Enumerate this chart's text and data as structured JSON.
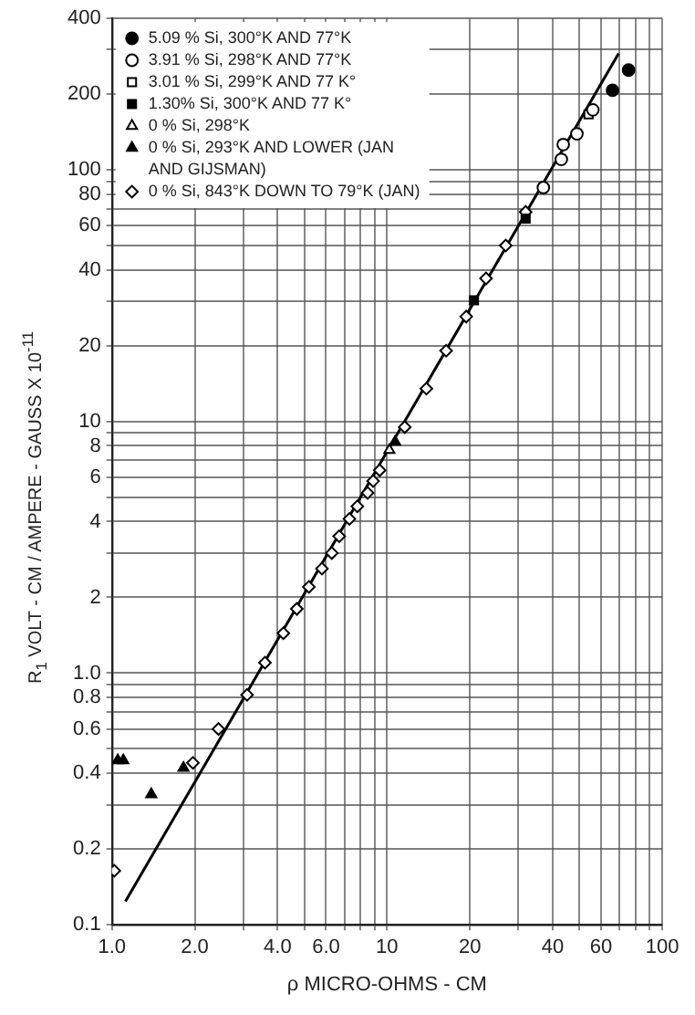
{
  "chart_data": {
    "type": "scatter",
    "xlabel": "ρ MICRO-OHMS - CM",
    "ylabel": "R$_{1}$ VOLT - CM / AMPERE - GAUSS X 10$^{-11}$",
    "log": "xy",
    "grid": true,
    "legend": "top left",
    "xlim": [
      1,
      100
    ],
    "ylim": [
      0.1,
      400
    ],
    "xticks": [
      {
        "value": 1,
        "label": "1.0"
      },
      {
        "value": 2,
        "label": "2.0"
      },
      {
        "value": 3,
        "label": null
      },
      {
        "value": 4,
        "label": "4.0"
      },
      {
        "value": 5,
        "label": null
      },
      {
        "value": 6,
        "label": "6.0"
      },
      {
        "value": 7,
        "label": null
      },
      {
        "value": 8,
        "label": null
      },
      {
        "value": 9,
        "label": null
      },
      10,
      20,
      {
        "value": 30,
        "label": null
      },
      40,
      {
        "value": 50,
        "label": null
      },
      60,
      {
        "value": 70,
        "label": null
      },
      {
        "value": 80,
        "label": null
      },
      {
        "value": 90,
        "label": null
      },
      100
    ],
    "yticks": [
      0.1,
      0.2,
      {
        "value": 0.3,
        "label": null
      },
      0.4,
      {
        "value": 0.5,
        "label": null
      },
      0.6,
      {
        "value": 0.7,
        "label": null
      },
      0.8,
      {
        "value": 0.9,
        "label": null
      },
      {
        "value": 1,
        "label": "1.0"
      },
      2,
      {
        "value": 3,
        "label": null
      },
      4,
      {
        "value": 5,
        "label": null
      },
      6,
      {
        "value": 7,
        "label": null
      },
      8,
      {
        "value": 9,
        "label": null
      },
      10,
      20,
      {
        "value": 30,
        "label": null
      },
      40,
      {
        "value": 50,
        "label": null
      },
      60,
      {
        "value": 70,
        "label": null
      },
      80,
      {
        "value": 90,
        "label": null
      },
      100,
      200,
      {
        "value": 300,
        "label": null
      },
      400
    ],
    "series": [
      {
        "name": "5.09 % Si, 300°K AND 77°K",
        "marker": "circle",
        "color": "#000000",
        "x": [
          66,
          75.5
        ],
        "values": [
          207,
          249
        ]
      },
      {
        "name": "3.91 % Si, 298°K AND 77°K",
        "marker": "circle",
        "color": "#ffffff",
        "x": [
          56,
          49,
          43.7,
          43,
          37
        ],
        "values": [
          173,
          139,
          126,
          110,
          85
        ]
      },
      {
        "name": "3.01 % Si, 299°K AND 77 K°",
        "marker": "square",
        "color": "#ffffff",
        "x": [
          54
        ],
        "values": [
          166
        ]
      },
      {
        "name": "1.30% Si, 300°K AND 77 K°",
        "marker": "square",
        "color": "#000000",
        "x": [
          31.9,
          20.7
        ],
        "values": [
          64,
          30.3
        ]
      },
      {
        "name": "0 % Si, 298°K",
        "marker": "triangle",
        "color": "#ffffff",
        "x": [
          10.2
        ],
        "values": [
          7.7
        ]
      },
      {
        "name": "0 % Si, 293°K AND LOWER (JAN AND GIJSMAN)",
        "marker": "triangle",
        "color": "#000000",
        "x": [
          10.7,
          1.05,
          1.1,
          1.39,
          1.82
        ],
        "values": [
          8.3,
          0.45,
          0.45,
          0.33,
          0.42
        ]
      },
      {
        "name": "0 % Si, 843°K DOWN TO 79°K (JAN)",
        "marker": "diamond",
        "color": "#ffffff",
        "x": [
          31.9,
          27,
          22.9,
          19.4,
          16.4,
          13.9,
          11.6,
          9.4,
          8.9,
          8.5,
          7.8,
          7.3,
          6.7,
          6.3,
          5.8,
          5.2,
          4.7,
          4.2,
          3.6,
          3.1,
          2.44,
          1.97,
          1.02
        ],
        "values": [
          68,
          50,
          37,
          26.1,
          19.1,
          13.5,
          9.5,
          6.4,
          5.8,
          5.2,
          4.6,
          4.1,
          3.5,
          3.0,
          2.6,
          2.2,
          1.8,
          1.44,
          1.1,
          0.82,
          0.6,
          0.44,
          0.164
        ]
      },
      {
        "type": "line",
        "marker": "none",
        "color": "#000000",
        "x": [
          1.12,
          69.5
        ],
        "values": [
          0.124,
          290
        ]
      }
    ]
  }
}
